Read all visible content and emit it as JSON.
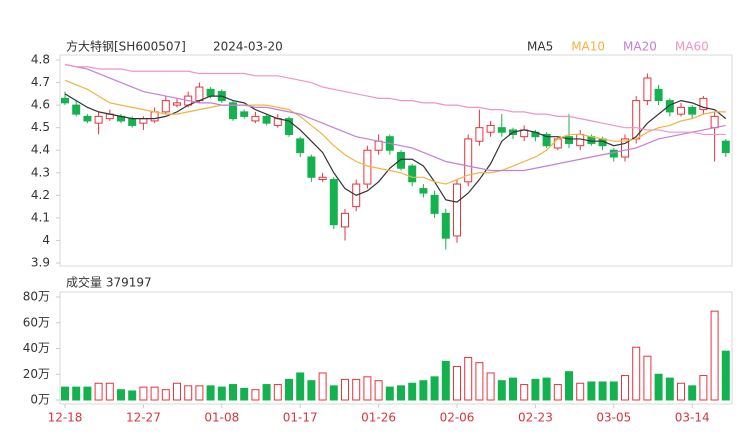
{
  "chart_data": [
    {
      "type": "candlestick",
      "title": "方大特钢[SH600507]",
      "date": "2024-03-20",
      "categories": [
        "12-18",
        null,
        null,
        null,
        null,
        null,
        null,
        "12-27",
        null,
        null,
        null,
        null,
        null,
        null,
        "01-08",
        null,
        null,
        null,
        null,
        null,
        null,
        "01-17",
        null,
        null,
        null,
        null,
        null,
        null,
        "01-26",
        null,
        null,
        null,
        null,
        null,
        null,
        "02-06",
        null,
        null,
        null,
        null,
        null,
        null,
        "02-23",
        null,
        null,
        null,
        null,
        null,
        null,
        "03-05",
        null,
        null,
        null,
        null,
        null,
        null,
        "03-14",
        null,
        null,
        null
      ],
      "open": [
        4.63,
        4.6,
        4.55,
        4.52,
        4.54,
        4.55,
        4.54,
        4.52,
        4.53,
        4.57,
        4.6,
        4.6,
        4.62,
        4.67,
        4.66,
        4.61,
        4.57,
        4.53,
        4.55,
        4.51,
        4.54,
        4.45,
        4.37,
        4.27,
        4.27,
        4.06,
        4.15,
        4.25,
        4.4,
        4.46,
        4.39,
        4.33,
        4.23,
        4.2,
        4.12,
        4.02,
        4.26,
        4.44,
        4.48,
        4.5,
        4.49,
        4.46,
        4.48,
        4.47,
        4.41,
        4.46,
        4.42,
        4.46,
        4.45,
        4.4,
        4.37,
        4.45,
        4.62,
        4.67,
        4.62,
        4.56,
        4.59,
        4.58,
        4.5,
        4.44
      ],
      "high": [
        4.66,
        4.62,
        4.56,
        4.57,
        4.58,
        4.56,
        4.55,
        4.55,
        4.59,
        4.64,
        4.63,
        4.66,
        4.7,
        4.68,
        4.67,
        4.62,
        4.58,
        4.57,
        4.56,
        4.56,
        4.55,
        4.46,
        4.38,
        4.3,
        4.28,
        4.14,
        4.27,
        4.42,
        4.47,
        4.47,
        4.4,
        4.34,
        4.25,
        4.22,
        4.14,
        4.27,
        4.47,
        4.58,
        4.53,
        4.56,
        4.5,
        4.51,
        4.49,
        4.48,
        4.46,
        4.56,
        4.49,
        4.47,
        4.46,
        4.41,
        4.47,
        4.64,
        4.74,
        4.69,
        4.63,
        4.61,
        4.6,
        4.64,
        4.57,
        4.45
      ],
      "low": [
        4.6,
        4.55,
        4.52,
        4.47,
        4.53,
        4.52,
        4.5,
        4.49,
        4.52,
        4.56,
        4.59,
        4.59,
        4.61,
        4.63,
        4.61,
        4.53,
        4.54,
        4.52,
        4.51,
        4.5,
        4.46,
        4.37,
        4.26,
        4.26,
        4.05,
        4.0,
        4.13,
        4.23,
        4.38,
        4.38,
        4.31,
        4.24,
        4.19,
        4.1,
        3.96,
        3.99,
        4.24,
        4.42,
        4.46,
        4.46,
        4.45,
        4.44,
        4.44,
        4.41,
        4.4,
        4.41,
        4.4,
        4.42,
        4.4,
        4.35,
        4.35,
        4.43,
        4.6,
        4.6,
        4.55,
        4.55,
        4.54,
        4.56,
        4.35,
        4.37
      ],
      "close": [
        4.61,
        4.56,
        4.53,
        4.55,
        4.56,
        4.53,
        4.51,
        4.54,
        4.57,
        4.62,
        4.61,
        4.64,
        4.68,
        4.64,
        4.62,
        4.54,
        4.55,
        4.55,
        4.52,
        4.54,
        4.47,
        4.39,
        4.28,
        4.28,
        4.07,
        4.12,
        4.25,
        4.4,
        4.44,
        4.4,
        4.32,
        4.26,
        4.21,
        4.12,
        4.01,
        4.25,
        4.45,
        4.5,
        4.51,
        4.48,
        4.47,
        4.49,
        4.46,
        4.42,
        4.45,
        4.43,
        4.47,
        4.43,
        4.42,
        4.37,
        4.45,
        4.62,
        4.72,
        4.62,
        4.57,
        4.59,
        4.56,
        4.63,
        4.55,
        4.39
      ],
      "up_color": "#e8343c",
      "down_color": "#14b24f",
      "series": [
        {
          "name": "MA5",
          "color": "#333333",
          "values": [
            4.65,
            4.62,
            4.59,
            4.57,
            4.56,
            4.55,
            4.54,
            4.54,
            4.54,
            4.55,
            4.57,
            4.6,
            4.62,
            4.64,
            4.64,
            4.62,
            4.61,
            4.58,
            4.56,
            4.54,
            4.53,
            4.49,
            4.44,
            4.39,
            4.3,
            4.23,
            4.2,
            4.22,
            4.26,
            4.32,
            4.36,
            4.36,
            4.33,
            4.26,
            4.18,
            4.17,
            4.21,
            4.27,
            4.34,
            4.44,
            4.48,
            4.49,
            4.48,
            4.46,
            4.46,
            4.45,
            4.45,
            4.44,
            4.44,
            4.42,
            4.43,
            4.46,
            4.52,
            4.56,
            4.6,
            4.62,
            4.61,
            4.59,
            4.58,
            4.54
          ]
        },
        {
          "name": "MA10",
          "color": "#f2b440",
          "values": [
            4.71,
            4.69,
            4.67,
            4.64,
            4.61,
            4.6,
            4.59,
            4.58,
            4.57,
            4.56,
            4.56,
            4.57,
            4.58,
            4.59,
            4.6,
            4.6,
            4.6,
            4.6,
            4.6,
            4.59,
            4.58,
            4.55,
            4.51,
            4.47,
            4.42,
            4.38,
            4.35,
            4.33,
            4.32,
            4.31,
            4.3,
            4.28,
            4.28,
            4.26,
            4.25,
            4.27,
            4.29,
            4.3,
            4.3,
            4.31,
            4.33,
            4.35,
            4.37,
            4.4,
            4.45,
            4.47,
            4.47,
            4.46,
            4.45,
            4.44,
            4.44,
            4.45,
            4.48,
            4.5,
            4.51,
            4.53,
            4.54,
            4.56,
            4.57,
            4.57
          ]
        },
        {
          "name": "MA20",
          "color": "#c27fd9",
          "values": [
            4.78,
            4.77,
            4.76,
            4.74,
            4.72,
            4.7,
            4.68,
            4.66,
            4.65,
            4.64,
            4.63,
            4.62,
            4.61,
            4.61,
            4.6,
            4.6,
            4.6,
            4.59,
            4.59,
            4.58,
            4.57,
            4.56,
            4.54,
            4.52,
            4.5,
            4.48,
            4.46,
            4.45,
            4.44,
            4.43,
            4.42,
            4.41,
            4.39,
            4.37,
            4.35,
            4.34,
            4.33,
            4.32,
            4.31,
            4.31,
            4.31,
            4.31,
            4.32,
            4.33,
            4.34,
            4.35,
            4.36,
            4.37,
            4.38,
            4.39,
            4.4,
            4.41,
            4.43,
            4.45,
            4.46,
            4.47,
            4.48,
            4.49,
            4.5,
            4.51
          ]
        },
        {
          "name": "MA60",
          "color": "#f095c4",
          "values": [
            4.78,
            4.77,
            4.77,
            4.76,
            4.76,
            4.76,
            4.75,
            4.75,
            4.75,
            4.75,
            4.75,
            4.75,
            4.74,
            4.74,
            4.74,
            4.74,
            4.74,
            4.73,
            4.73,
            4.73,
            4.72,
            4.71,
            4.7,
            4.68,
            4.67,
            4.66,
            4.65,
            4.64,
            4.63,
            4.63,
            4.62,
            4.62,
            4.61,
            4.61,
            4.6,
            4.6,
            4.59,
            4.59,
            4.58,
            4.58,
            4.57,
            4.57,
            4.56,
            4.56,
            4.55,
            4.55,
            4.54,
            4.53,
            4.52,
            4.51,
            4.5,
            4.5,
            4.49,
            4.49,
            4.48,
            4.48,
            4.48,
            4.47,
            4.47,
            4.47
          ]
        }
      ],
      "ylim": [
        3.9,
        4.8
      ],
      "yticks": [
        3.9,
        4,
        4.1,
        4.2,
        4.3,
        4.4,
        4.5,
        4.6,
        4.7,
        4.8
      ]
    },
    {
      "type": "bar",
      "title": "成交量 379197",
      "values": [
        10,
        10,
        10,
        13,
        13,
        8,
        7,
        10,
        10,
        8,
        13,
        11,
        11,
        11,
        10,
        12,
        9,
        8,
        12,
        12,
        16,
        21,
        15,
        21,
        11,
        16,
        16,
        18,
        15,
        10,
        11,
        13,
        15,
        18,
        30,
        26,
        33,
        29,
        21,
        15,
        17,
        12,
        16,
        17,
        12,
        22,
        13,
        14,
        14,
        14,
        19,
        41,
        34,
        20,
        17,
        13,
        11,
        19,
        69,
        37.9197
      ],
      "ylim": [
        0,
        80
      ],
      "yticks": [
        {
          "value": 0,
          "label": "0万"
        },
        {
          "value": 20,
          "label": "20万"
        },
        {
          "value": 40,
          "label": "40万"
        },
        {
          "value": 60,
          "label": "60万"
        },
        {
          "value": 80,
          "label": "80万"
        }
      ]
    }
  ]
}
